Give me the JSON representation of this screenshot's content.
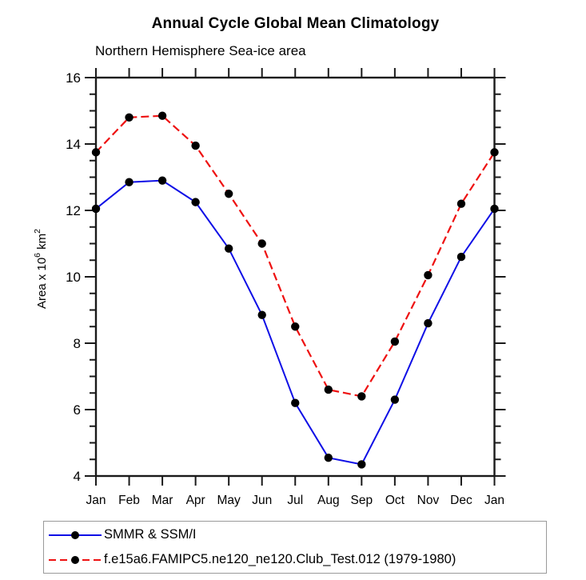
{
  "header": {
    "title": "Annual Cycle Global Mean Climatology",
    "subtitle": "Northern Hemisphere Sea-ice area"
  },
  "chart_data": {
    "type": "line",
    "title": "Annual Cycle Global Mean Climatology",
    "subtitle": "Northern Hemisphere Sea-ice area",
    "xlabel": "",
    "ylabel": "Area x 10⁶ km²",
    "ylabel_parts": {
      "base1": "Area x 10",
      "sup1": "6",
      "base2": " km",
      "sup2": "2"
    },
    "categories": [
      "Jan",
      "Feb",
      "Mar",
      "Apr",
      "May",
      "Jun",
      "Jul",
      "Aug",
      "Sep",
      "Oct",
      "Nov",
      "Dec",
      "Jan"
    ],
    "series": [
      {
        "name": "SMMR & SSM/I",
        "color": "#0f0fe6",
        "line_style": "solid",
        "marker": "black-dot",
        "values": [
          12.05,
          12.85,
          12.9,
          12.25,
          10.85,
          8.85,
          6.2,
          4.55,
          4.35,
          6.3,
          8.6,
          10.6,
          12.05
        ]
      },
      {
        "name": "f.e15a6.FAMIPC5.ne120_ne120.Club_Test.012 (1979-1980)",
        "color": "#ee1111",
        "line_style": "dashed",
        "marker": "black-dot",
        "values": [
          13.75,
          14.8,
          14.85,
          13.95,
          12.5,
          11.0,
          8.5,
          6.6,
          6.4,
          8.05,
          10.05,
          12.2,
          13.75
        ]
      }
    ],
    "ylim": [
      4,
      16
    ],
    "y_major_step": 2,
    "y_minor_step": 0.5,
    "y_tick_labels": [
      "4",
      "6",
      "8",
      "10",
      "12",
      "14",
      "16"
    ],
    "grid": false,
    "legend_position": "bottom-left-box",
    "marker_color": "#000000",
    "axis_color": "#1a1a1a"
  }
}
